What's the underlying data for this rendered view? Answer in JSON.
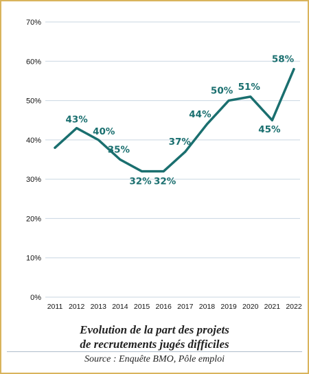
{
  "chart_data": {
    "type": "line",
    "x": [
      "2011",
      "2012",
      "2013",
      "2014",
      "2015",
      "2016",
      "2017",
      "2018",
      "2019",
      "2020",
      "2021",
      "2022"
    ],
    "series": [
      {
        "values": [
          38,
          43,
          40,
          35,
          32,
          32,
          37,
          44,
          50,
          51,
          45,
          58
        ]
      }
    ],
    "data_labels": [
      null,
      "43%",
      "40%",
      "35%",
      "32%",
      "32%",
      "37%",
      "44%",
      "50%",
      "51%",
      "45%",
      "58%"
    ],
    "yticks": [
      "0%",
      "10%",
      "20%",
      "30%",
      "40%",
      "50%",
      "60%",
      "70%"
    ],
    "ylim": [
      0,
      70
    ],
    "grid": true,
    "line_color": "#1a6f6f",
    "grid_color": "#c9d6e2"
  },
  "caption": {
    "line1": "Evolution de la part des projets",
    "line2": "de recrutements jugés difficiles"
  },
  "source": "Source : Enquête BMO, Pôle emploi",
  "colors": {
    "border": "#d9b45c",
    "accent": "#1a6f6f"
  }
}
